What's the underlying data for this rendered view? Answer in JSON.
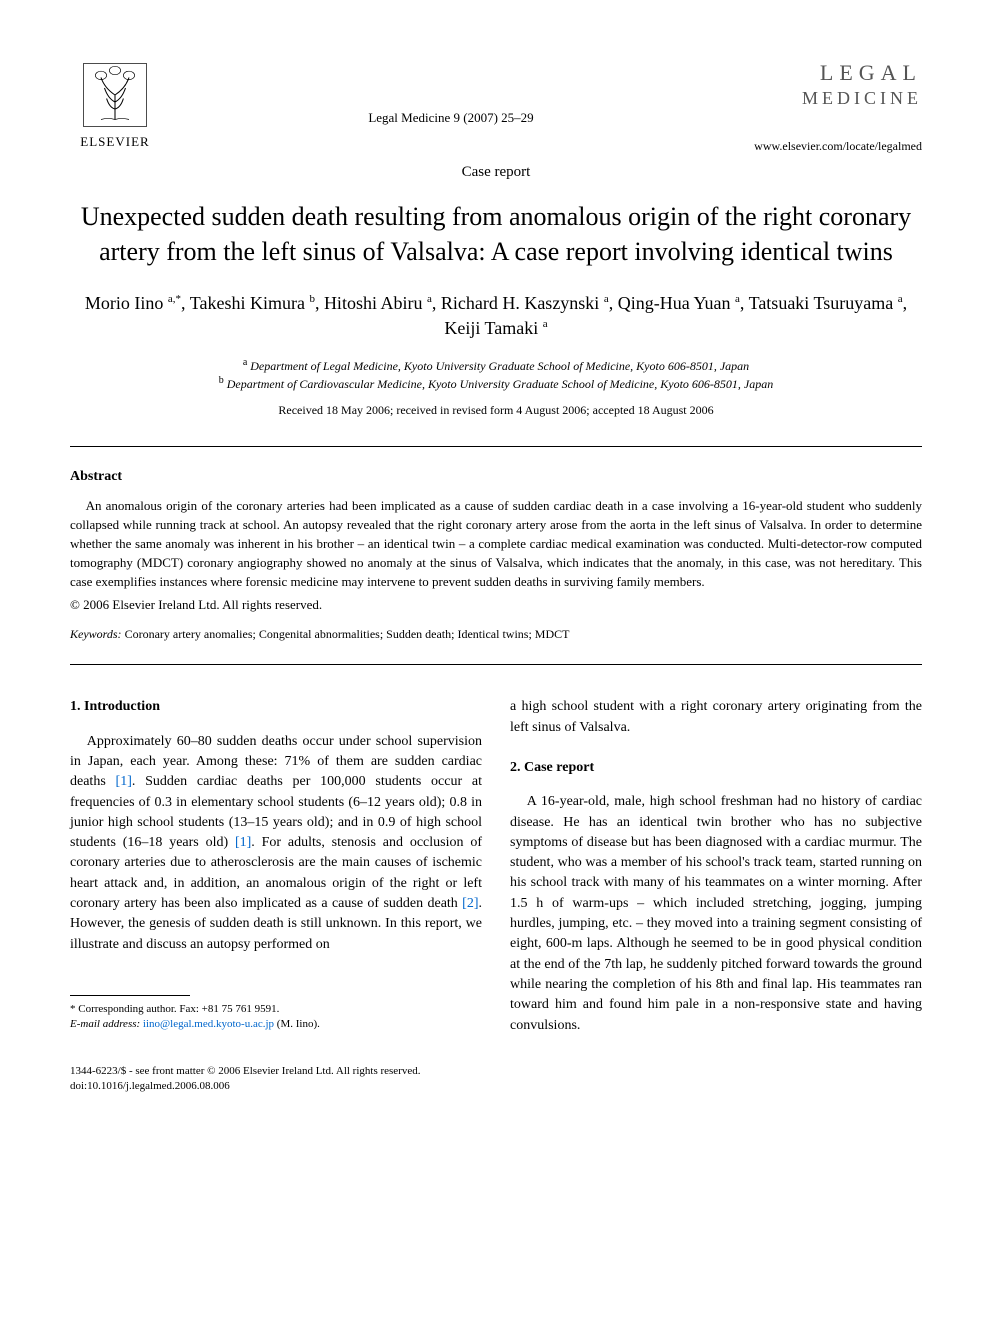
{
  "header": {
    "publisher_name": "ELSEVIER",
    "citation": "Legal Medicine 9 (2007) 25–29",
    "brand_line1": "LEGAL",
    "brand_line2": "MEDICINE",
    "journal_url": "www.elsevier.com/locate/legalmed"
  },
  "article": {
    "type": "Case report",
    "title": "Unexpected sudden death resulting from anomalous origin of the right coronary artery from the left sinus of Valsalva: A case report involving identical twins",
    "authors_html": "Morio Iino <sup>a,*</sup>, Takeshi Kimura <sup>b</sup>, Hitoshi Abiru <sup>a</sup>, Richard H. Kaszynski <sup>a</sup>, Qing-Hua Yuan <sup>a</sup>, Tatsuaki Tsuruyama <sup>a</sup>, Keiji Tamaki <sup>a</sup>",
    "affiliations": [
      "a Department of Legal Medicine, Kyoto University Graduate School of Medicine, Kyoto 606-8501, Japan",
      "b Department of Cardiovascular Medicine, Kyoto University Graduate School of Medicine, Kyoto 606-8501, Japan"
    ],
    "dates": "Received 18 May 2006; received in revised form 4 August 2006; accepted 18 August 2006"
  },
  "abstract": {
    "heading": "Abstract",
    "text": "An anomalous origin of the coronary arteries had been implicated as a cause of sudden cardiac death in a case involving a 16-year-old student who suddenly collapsed while running track at school. An autopsy revealed that the right coronary artery arose from the aorta in the left sinus of Valsalva. In order to determine whether the same anomaly was inherent in his brother – an identical twin – a complete cardiac medical examination was conducted. Multi-detector-row computed tomography (MDCT) coronary angiography showed no anomaly at the sinus of Valsalva, which indicates that the anomaly, in this case, was not hereditary. This case exemplifies instances where forensic medicine may intervene to prevent sudden deaths in surviving family members.",
    "copyright": "© 2006 Elsevier Ireland Ltd. All rights reserved."
  },
  "keywords": {
    "label": "Keywords:",
    "text": " Coronary artery anomalies; Congenital abnormalities; Sudden death; Identical twins; MDCT"
  },
  "sections": {
    "intro_heading": "1. Introduction",
    "intro_text": "Approximately 60–80 sudden deaths occur under school supervision in Japan, each year. Among these: 71% of them are sudden cardiac deaths [1]. Sudden cardiac deaths per 100,000 students occur at frequencies of 0.3 in elementary school students (6–12 years old); 0.8 in junior high school students (13–15 years old); and in 0.9 of high school students (16–18 years old) [1]. For adults, stenosis and occlusion of coronary arteries due to atherosclerosis are the main causes of ischemic heart attack and, in addition, an anomalous origin of the right or left coronary artery has been also implicated as a cause of sudden death [2]. However, the genesis of sudden death is still unknown. In this report, we illustrate and discuss an autopsy performed on",
    "col2_continuation": "a high school student with a right coronary artery originating from the left sinus of Valsalva.",
    "case_heading": "2. Case report",
    "case_text": "A 16-year-old, male, high school freshman had no history of cardiac disease. He has an identical twin brother who has no subjective symptoms of disease but has been diagnosed with a cardiac murmur. The student, who was a member of his school's track team, started running on his school track with many of his teammates on a winter morning. After 1.5 h of warm-ups – which included stretching, jogging, jumping hurdles, jumping, etc. – they moved into a training segment consisting of eight, 600-m laps. Although he seemed to be in good physical condition at the end of the 7th lap, he suddenly pitched forward towards the ground while nearing the completion of his 8th and final lap. His teammates ran toward him and found him pale in a non-responsive state and having convulsions."
  },
  "footnote": {
    "corr": "* Corresponding author. Fax: +81 75 761 9591.",
    "email_label": "E-mail address:",
    "email": "iino@legal.med.kyoto-u.ac.jp",
    "email_suffix": " (M. Iino)."
  },
  "footer": {
    "line1": "1344-6223/$ - see front matter © 2006 Elsevier Ireland Ltd. All rights reserved.",
    "line2": "doi:10.1016/j.legalmed.2006.08.006"
  },
  "colors": {
    "text": "#000000",
    "link": "#0066cc",
    "brand": "#555555",
    "background": "#ffffff"
  },
  "typography": {
    "body_font": "Times New Roman",
    "title_fontsize": 26,
    "authors_fontsize": 18,
    "body_fontsize": 14,
    "abstract_fontsize": 13,
    "footnote_fontsize": 11
  }
}
